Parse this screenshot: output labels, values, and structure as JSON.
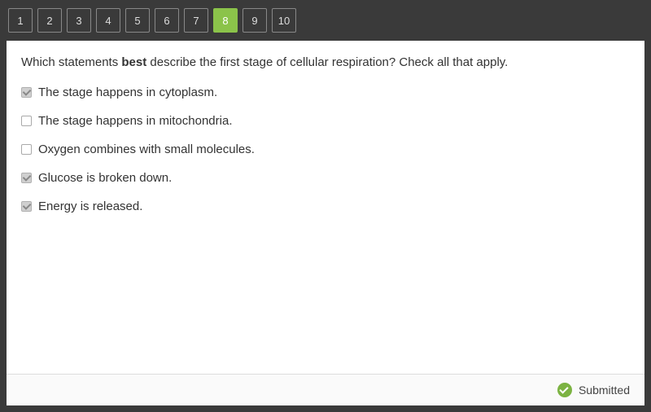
{
  "nav": {
    "items": [
      {
        "label": "1",
        "active": false
      },
      {
        "label": "2",
        "active": false
      },
      {
        "label": "3",
        "active": false
      },
      {
        "label": "4",
        "active": false
      },
      {
        "label": "5",
        "active": false
      },
      {
        "label": "6",
        "active": false
      },
      {
        "label": "7",
        "active": false
      },
      {
        "label": "8",
        "active": true
      },
      {
        "label": "9",
        "active": false
      },
      {
        "label": "10",
        "active": false
      }
    ],
    "active_bg": "#8bc34a",
    "inactive_bg": "#3a3a3a"
  },
  "question": {
    "pre": "Which statements ",
    "bold": "best",
    "post": " describe the first stage of cellular respiration? Check all that apply."
  },
  "options": [
    {
      "label": "The stage happens in cytoplasm.",
      "checked": true
    },
    {
      "label": "The stage happens in mitochondria.",
      "checked": false
    },
    {
      "label": "Oxygen combines with small molecules.",
      "checked": false
    },
    {
      "label": "Glucose is broken down.",
      "checked": true
    },
    {
      "label": "Energy is released.",
      "checked": true
    }
  ],
  "status": {
    "label": "Submitted"
  },
  "colors": {
    "frame_bg": "#3a3a3a",
    "panel_bg": "#ffffff",
    "status_bg": "#fafafa",
    "accent": "#7cb342"
  }
}
